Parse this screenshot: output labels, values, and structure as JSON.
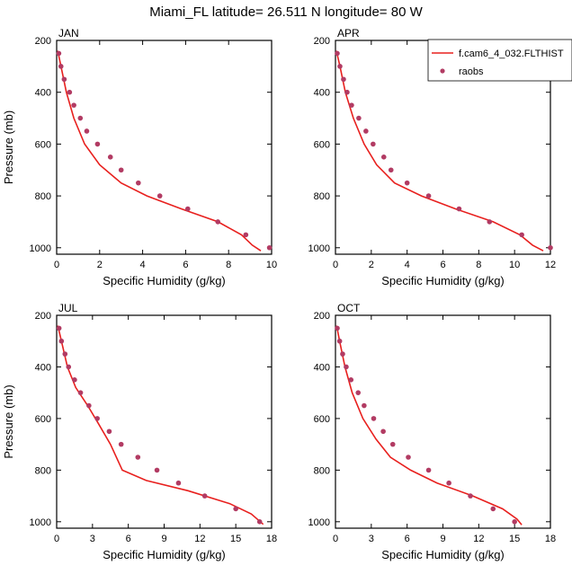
{
  "title": "Miami_FL  latitude= 26.511 N longitude= 80 W",
  "legend": {
    "model_label": "f.cam6_4_032.FLTHIST",
    "obs_label": "raobs"
  },
  "colors": {
    "model": "#e8201e",
    "obs": "#b23b63"
  },
  "chart_data": [
    {
      "type": "line",
      "panel": "JAN",
      "xlabel": "Specific Humidity (g/kg)",
      "ylabel": "Pressure (mb)",
      "xlim": [
        0,
        10
      ],
      "ylim": [
        200,
        1025
      ],
      "y_reversed": true,
      "xticks": [
        0,
        2,
        4,
        6,
        8,
        10
      ],
      "yticks": [
        200,
        400,
        600,
        800,
        1000
      ],
      "series": [
        {
          "name": "f.cam6_4_032.FLTHIST",
          "style": "line",
          "x": [
            0.05,
            0.2,
            0.45,
            0.8,
            1.3,
            2.0,
            3.0,
            4.2,
            5.8,
            7.5,
            8.6,
            9.1,
            9.5
          ],
          "y": [
            240,
            300,
            400,
            500,
            600,
            680,
            750,
            800,
            850,
            900,
            950,
            990,
            1012
          ]
        },
        {
          "name": "raobs",
          "style": "markers",
          "x": [
            0.1,
            0.2,
            0.35,
            0.6,
            0.8,
            1.1,
            1.4,
            1.9,
            2.5,
            3.0,
            3.8,
            4.8,
            6.1,
            7.5,
            8.8,
            9.9
          ],
          "y": [
            250,
            300,
            350,
            400,
            450,
            500,
            550,
            600,
            650,
            700,
            750,
            800,
            850,
            900,
            950,
            1000
          ]
        }
      ]
    },
    {
      "type": "line",
      "panel": "APR",
      "xlabel": "Specific Humidity (g/kg)",
      "ylabel": "",
      "xlim": [
        0,
        12
      ],
      "ylim": [
        200,
        1025
      ],
      "y_reversed": true,
      "xticks": [
        0,
        2,
        4,
        6,
        8,
        10,
        12
      ],
      "yticks": [
        200,
        400,
        600,
        800,
        1000
      ],
      "series": [
        {
          "name": "f.cam6_4_032.FLTHIST",
          "style": "line",
          "x": [
            0.05,
            0.25,
            0.55,
            1.0,
            1.6,
            2.3,
            3.3,
            4.8,
            6.7,
            8.8,
            10.3,
            11.0,
            11.6
          ],
          "y": [
            240,
            300,
            400,
            500,
            600,
            680,
            750,
            800,
            850,
            900,
            950,
            990,
            1012
          ]
        },
        {
          "name": "raobs",
          "style": "markers",
          "x": [
            0.1,
            0.25,
            0.45,
            0.65,
            0.9,
            1.3,
            1.7,
            2.1,
            2.7,
            3.1,
            4.0,
            5.2,
            6.9,
            8.6,
            10.4,
            12.0
          ],
          "y": [
            250,
            300,
            350,
            400,
            450,
            500,
            550,
            600,
            650,
            700,
            750,
            800,
            850,
            900,
            950,
            1000
          ]
        }
      ]
    },
    {
      "type": "line",
      "panel": "JUL",
      "xlabel": "Specific Humidity (g/kg)",
      "ylabel": "Pressure (mb)",
      "xlim": [
        0,
        18
      ],
      "ylim": [
        200,
        1025
      ],
      "y_reversed": true,
      "xticks": [
        0,
        3,
        6,
        9,
        12,
        15,
        18
      ],
      "yticks": [
        200,
        400,
        600,
        800,
        1000
      ],
      "series": [
        {
          "name": "f.cam6_4_032.FLTHIST",
          "style": "line",
          "x": [
            0.1,
            0.4,
            0.9,
            1.6,
            2.6,
            3.5,
            4.5,
            5.5,
            7.5,
            11.0,
            14.5,
            16.3,
            17.3
          ],
          "y": [
            240,
            300,
            400,
            480,
            550,
            620,
            700,
            800,
            840,
            880,
            930,
            970,
            1010
          ]
        },
        {
          "name": "raobs",
          "style": "markers",
          "x": [
            0.2,
            0.4,
            0.7,
            1.0,
            1.5,
            2.0,
            2.7,
            3.4,
            4.4,
            5.4,
            6.8,
            8.4,
            10.2,
            12.4,
            15.0,
            17.0
          ],
          "y": [
            250,
            300,
            350,
            400,
            450,
            500,
            550,
            600,
            650,
            700,
            750,
            800,
            850,
            900,
            950,
            1000
          ]
        }
      ]
    },
    {
      "type": "line",
      "panel": "OCT",
      "xlabel": "Specific Humidity (g/kg)",
      "ylabel": "",
      "xlim": [
        0,
        18
      ],
      "ylim": [
        200,
        1025
      ],
      "y_reversed": true,
      "xticks": [
        0,
        3,
        6,
        9,
        12,
        15,
        18
      ],
      "yticks": [
        200,
        400,
        600,
        800,
        1000
      ],
      "series": [
        {
          "name": "f.cam6_4_032.FLTHIST",
          "style": "line",
          "x": [
            0.1,
            0.35,
            0.8,
            1.4,
            2.3,
            3.4,
            4.6,
            6.3,
            8.5,
            11.5,
            14.0,
            15.2,
            15.6
          ],
          "y": [
            240,
            300,
            400,
            500,
            600,
            680,
            750,
            800,
            850,
            900,
            950,
            990,
            1012
          ]
        },
        {
          "name": "raobs",
          "style": "markers",
          "x": [
            0.15,
            0.35,
            0.6,
            0.9,
            1.3,
            1.9,
            2.4,
            3.2,
            4.0,
            4.8,
            6.1,
            7.8,
            9.5,
            11.3,
            13.2,
            15.0
          ],
          "y": [
            250,
            300,
            350,
            400,
            450,
            500,
            550,
            600,
            650,
            700,
            750,
            800,
            850,
            900,
            950,
            1000
          ]
        }
      ]
    }
  ]
}
